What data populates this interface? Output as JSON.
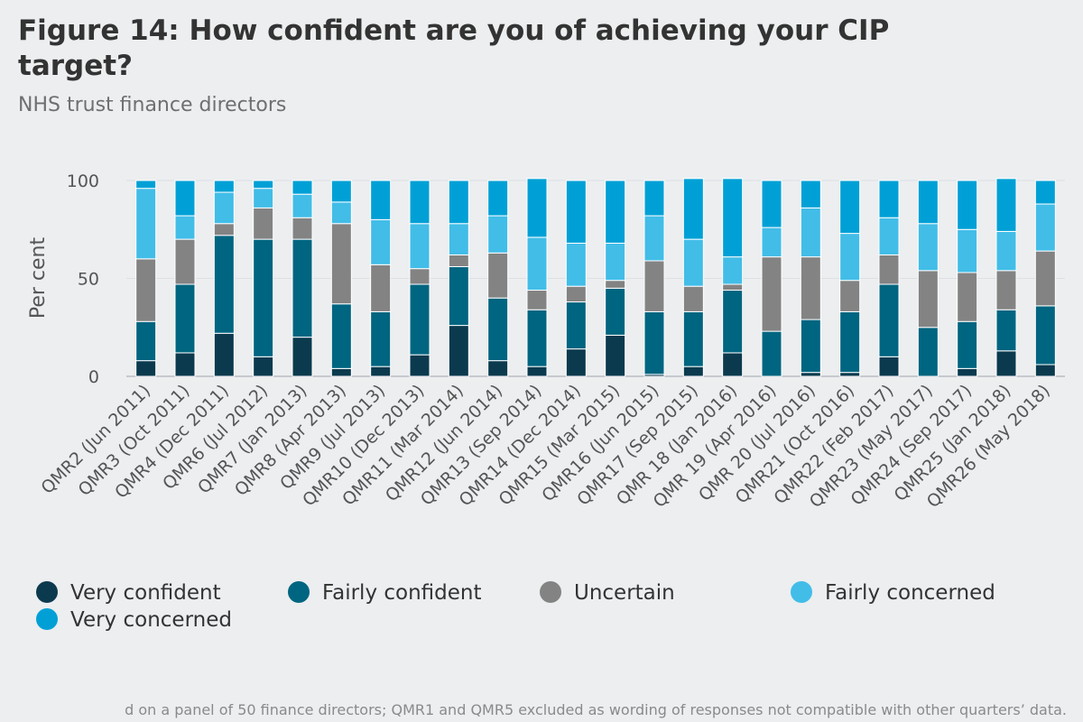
{
  "chart_data": {
    "type": "bar",
    "stacked": true,
    "title_line1": "Figure 14: How confident are you of achieving your CIP",
    "title_line2": "target?",
    "subtitle": "NHS trust finance directors",
    "xlabel": "",
    "ylabel": "Per cent",
    "ylim": [
      0,
      100
    ],
    "yticks": [
      0,
      50,
      100
    ],
    "grid": true,
    "legend_position": "bottom",
    "note": "d on a panel of 50 finance directors; QMR1 and QMR5 excluded as wording of responses not compatible with other quarters’ data.",
    "categories": [
      "QMR2 (Jun 2011)",
      "QMR3 (Oct 2011)",
      "QMR4 (Dec 2011)",
      "QMR6 (Jul 2012)",
      "QMR7 (Jan 2013)",
      "QMR8 (Apr 2013)",
      "QMR9 (Jul 2013)",
      "QMR10 (Dec 2013)",
      "QMR11 (Mar 2014)",
      "QMR12 (Jun 2014)",
      "QMR13 (Sep 2014)",
      "QMR14 (Dec 2014)",
      "QMR15 (Mar 2015)",
      "QMR16 (Jun 2015)",
      "QMR17 (Sep 2015)",
      "QMR 18 (Jan 2016)",
      "QMR 19 (Apr 2016)",
      "QMR 20 (Jul 2016)",
      "QMR21 (Oct 2016)",
      "QMR22 (Feb 2017)",
      "QMR23 (May 2017)",
      "QMR24 (Sep 2017)",
      "QMR25 (Jan 2018)",
      "QMR26 (May 2018)"
    ],
    "series": [
      {
        "name": "Very confident",
        "color": "#0b3a4e",
        "values": [
          8,
          12,
          22,
          10,
          20,
          4,
          5,
          11,
          26,
          8,
          5,
          14,
          21,
          1,
          5,
          12,
          0,
          2,
          2,
          10,
          0,
          4,
          13,
          6
        ]
      },
      {
        "name": "Fairly confident",
        "color": "#006580",
        "values": [
          20,
          35,
          50,
          60,
          50,
          33,
          28,
          36,
          30,
          32,
          29,
          24,
          24,
          32,
          28,
          32,
          23,
          27,
          31,
          37,
          25,
          24,
          21,
          30
        ]
      },
      {
        "name": "Uncertain",
        "color": "#838383",
        "values": [
          32,
          23,
          6,
          16,
          11,
          41,
          24,
          8,
          6,
          23,
          10,
          8,
          4,
          26,
          13,
          3,
          38,
          32,
          16,
          15,
          29,
          25,
          20,
          28
        ]
      },
      {
        "name": "Fairly concerned",
        "color": "#42bde8",
        "values": [
          36,
          12,
          16,
          10,
          12,
          11,
          23,
          23,
          16,
          19,
          27,
          22,
          19,
          23,
          24,
          14,
          15,
          25,
          24,
          19,
          24,
          22,
          20,
          24
        ]
      },
      {
        "name": "Very concerned",
        "color": "#00a0d6",
        "values": [
          4,
          18,
          6,
          4,
          7,
          11,
          20,
          22,
          22,
          18,
          30,
          32,
          32,
          18,
          31,
          40,
          24,
          14,
          27,
          19,
          22,
          25,
          27,
          12
        ]
      }
    ]
  }
}
